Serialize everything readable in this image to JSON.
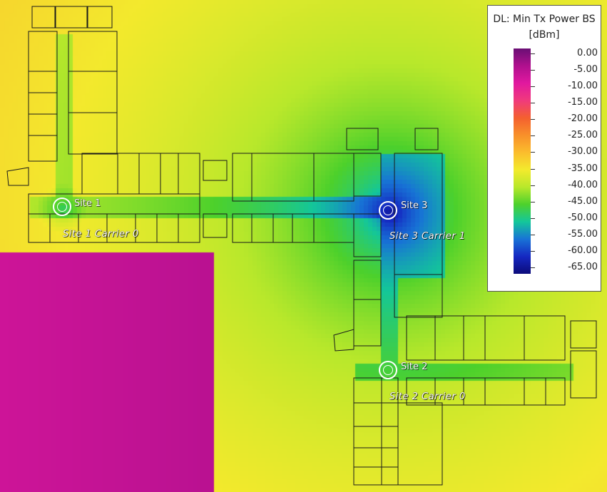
{
  "legend": {
    "title_line1": "DL: Min Tx Power BS",
    "title_line2": "[dBm]",
    "ticks": [
      "0.00",
      "-5.00",
      "-10.00",
      "-15.00",
      "-20.00",
      "-25.00",
      "-30.00",
      "-35.00",
      "-40.00",
      "-45.00",
      "-50.00",
      "-55.00",
      "-60.00",
      "-65.00"
    ],
    "colors": [
      "#6a0f74",
      "#b0108e",
      "#e1189f",
      "#f03a7c",
      "#f4602f",
      "#f8902a",
      "#fbbd2d",
      "#f3ea2d",
      "#b8e82b",
      "#4dd12c",
      "#14c79a",
      "#1873d6",
      "#1528c2",
      "#0c0b7a"
    ]
  },
  "sites": [
    {
      "label": "Site 1",
      "carrier": "Site 1 Carrier 0",
      "strength": -48
    },
    {
      "label": "Site 3",
      "carrier": "Site 3 Carrier 1",
      "strength": -63
    },
    {
      "label": "Site 2",
      "carrier": "Site 2 Carrier 0",
      "strength": -46
    }
  ]
}
